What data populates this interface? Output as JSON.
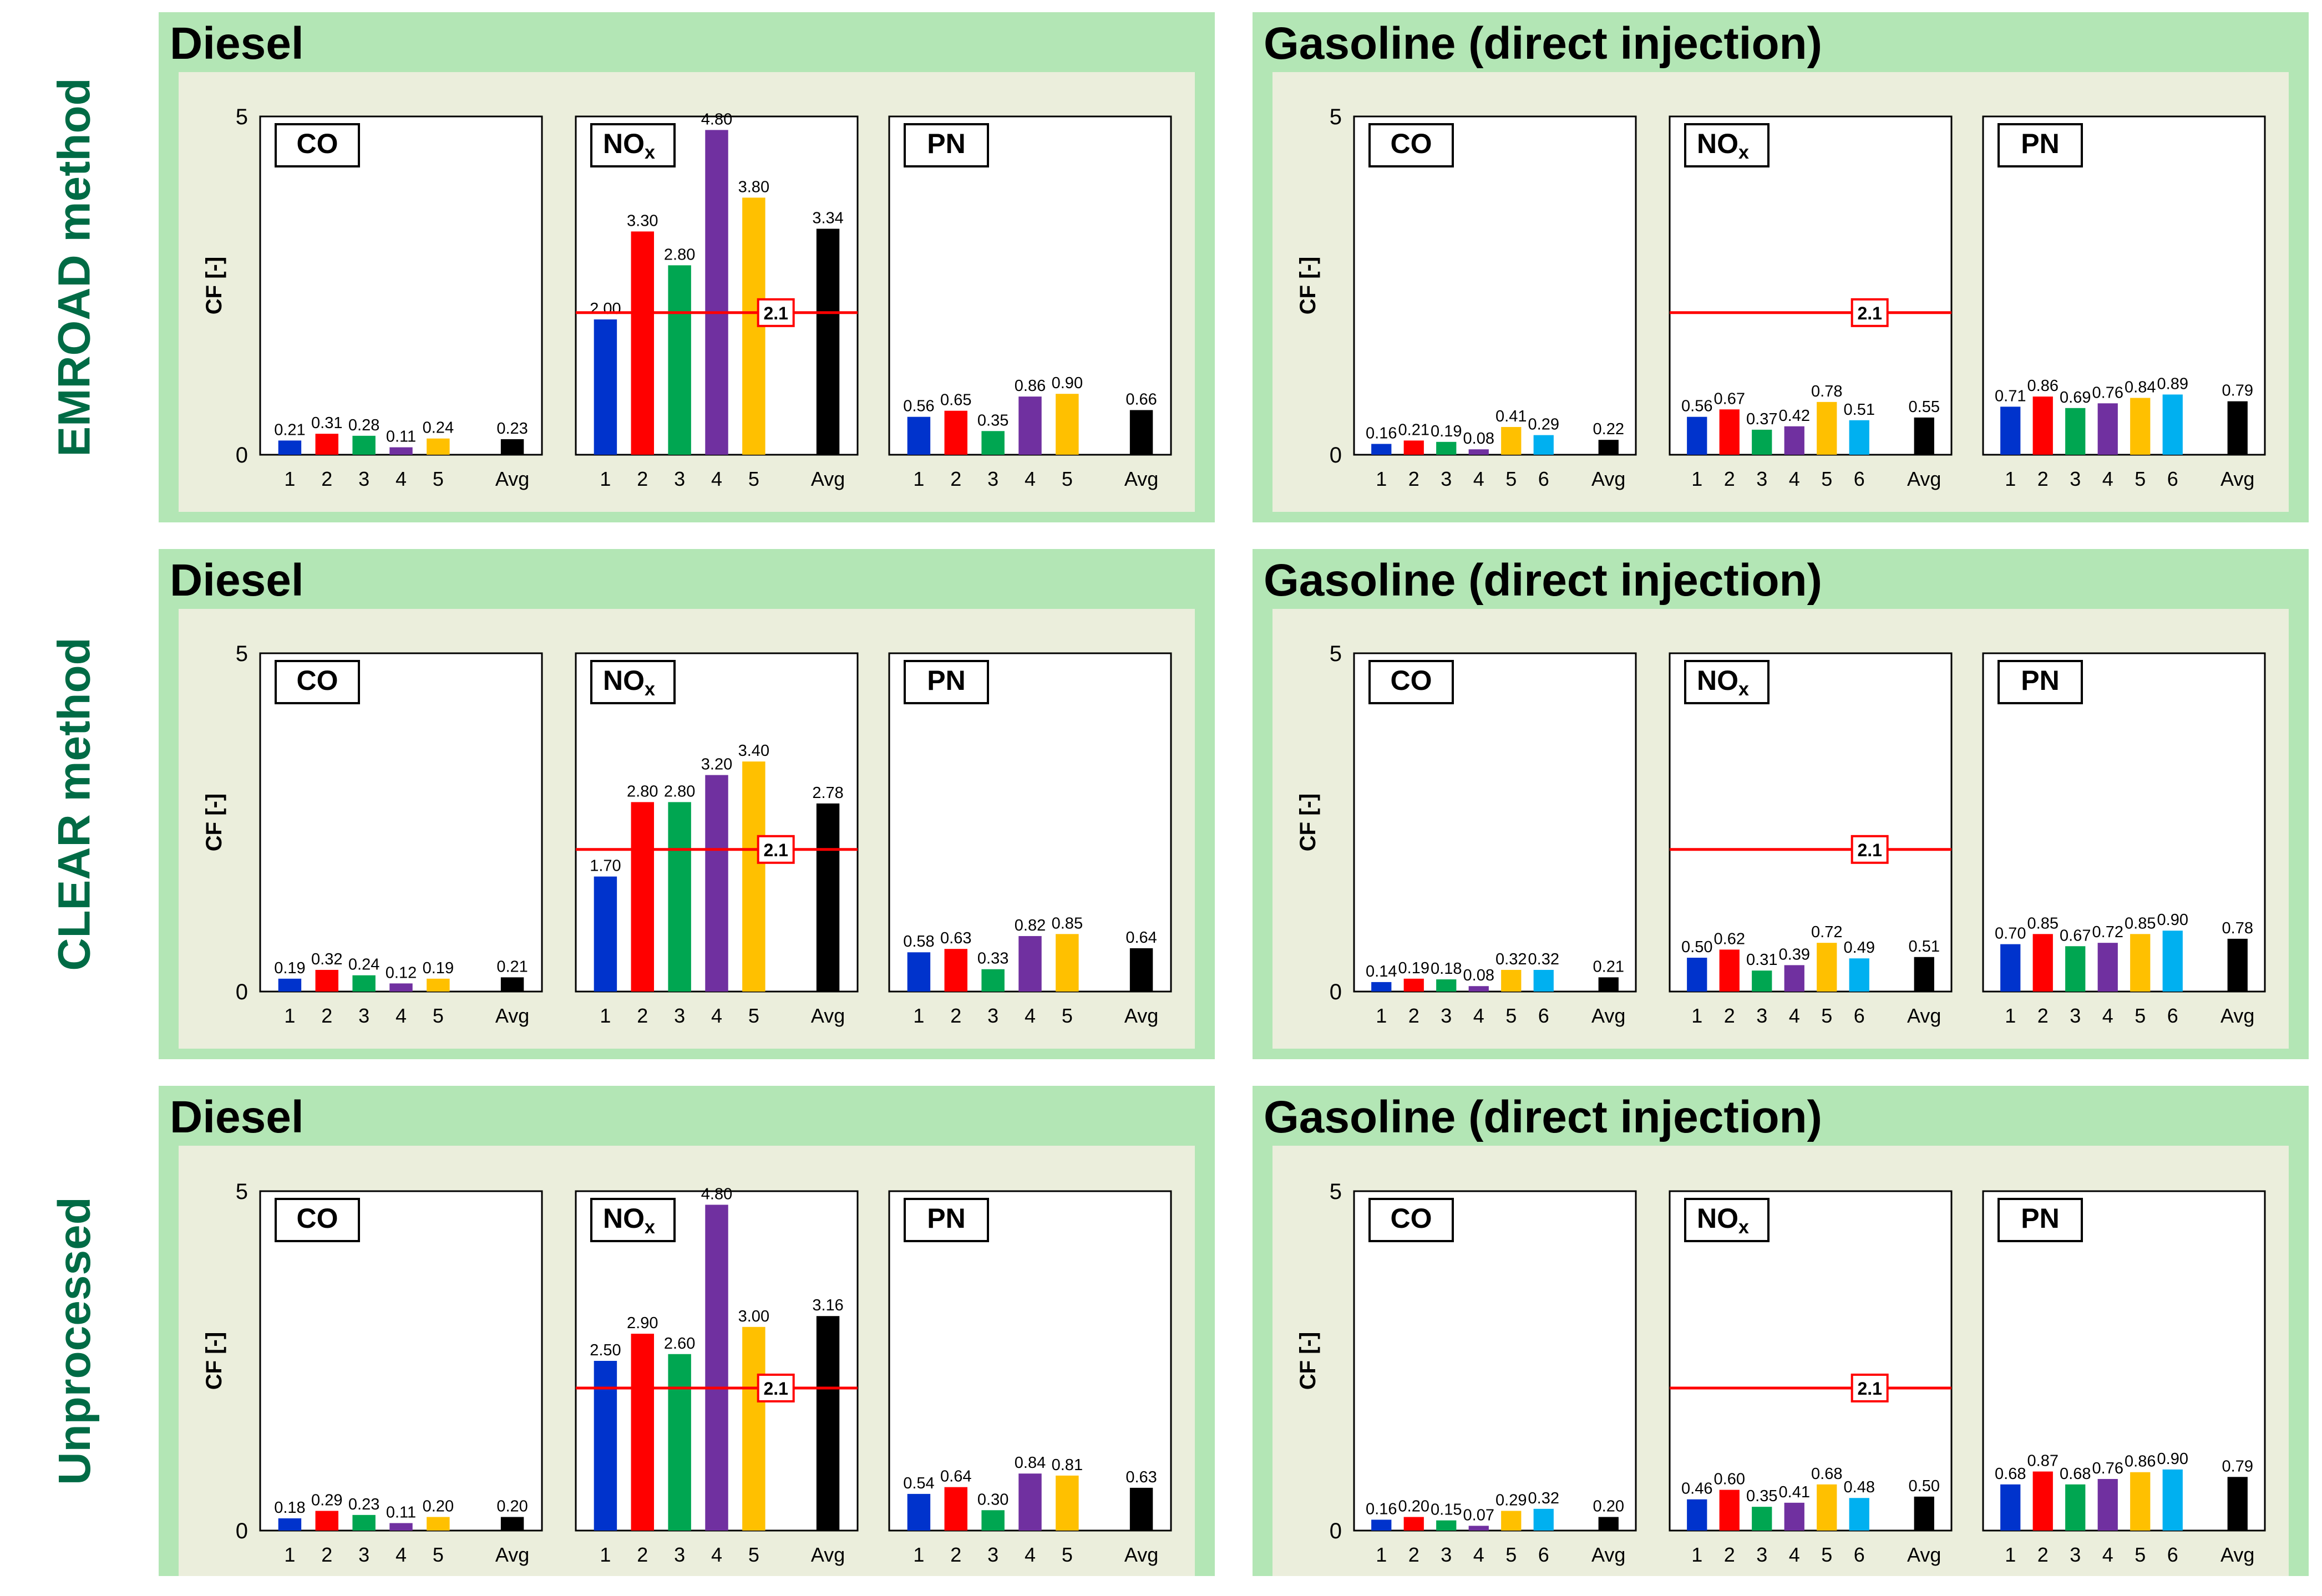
{
  "rows": [
    {
      "label": "EMROAD method"
    },
    {
      "label": "CLEAR method"
    },
    {
      "label": "Unprocessed"
    }
  ],
  "panel_titles": {
    "diesel": "Diesel",
    "gasoline": "Gasoline (direct injection)"
  },
  "y_axis": {
    "label": "CF [-]",
    "ticks": [
      "5",
      "0"
    ],
    "ylim": [
      0,
      5
    ]
  },
  "pollutants": [
    {
      "name": "CO",
      "sub": ""
    },
    {
      "name": "NO",
      "sub": "x"
    },
    {
      "name": "PN",
      "sub": ""
    }
  ],
  "nox_limit": {
    "value": 2.1,
    "label": "2.1"
  },
  "colors": {
    "panel_bg": "#b3e6b5",
    "inner_bg": "#ebeedc",
    "row_label": "#006b45",
    "limit_line": "#ff0000",
    "series": [
      "#0033cc",
      "#ff0000",
      "#00a651",
      "#7030a0",
      "#ffc000",
      "#00b0f0"
    ],
    "avg": "#000000"
  },
  "chart_data": [
    {
      "row": "EMROAD method",
      "panel": "Diesel",
      "type": "bar",
      "categories": [
        "1",
        "2",
        "3",
        "4",
        "5",
        "Avg"
      ],
      "charts": [
        {
          "pollutant": "CO",
          "values": [
            0.21,
            0.31,
            0.28,
            0.11,
            0.24,
            0.23
          ],
          "labels": [
            "0.21",
            "0.31",
            "0.28",
            "0.11",
            "0.24",
            "0.23"
          ]
        },
        {
          "pollutant": "NOx",
          "values": [
            2.0,
            3.3,
            2.8,
            4.8,
            3.8,
            3.34
          ],
          "labels": [
            "2.00",
            "3.30",
            "2.80",
            "4.80",
            "3.80",
            "3.34"
          ],
          "limit": 2.1
        },
        {
          "pollutant": "PN",
          "values": [
            0.56,
            0.65,
            0.35,
            0.86,
            0.9,
            0.66
          ],
          "labels": [
            "0.56",
            "0.65",
            "0.35",
            "0.86",
            "0.90",
            "0.66"
          ]
        }
      ]
    },
    {
      "row": "EMROAD method",
      "panel": "Gasoline (direct injection)",
      "type": "bar",
      "categories": [
        "1",
        "2",
        "3",
        "4",
        "5",
        "6",
        "Avg"
      ],
      "charts": [
        {
          "pollutant": "CO",
          "values": [
            0.16,
            0.21,
            0.19,
            0.08,
            0.41,
            0.29,
            0.22
          ],
          "labels": [
            "0.16",
            "0.21",
            "0.19",
            "0.08",
            "0.41",
            "0.29",
            "0.22"
          ]
        },
        {
          "pollutant": "NOx",
          "values": [
            0.56,
            0.67,
            0.37,
            0.42,
            0.78,
            0.51,
            0.55
          ],
          "labels": [
            "0.56",
            "0.67",
            "0.37",
            "0.42",
            "0.78",
            "0.51",
            "0.55"
          ],
          "limit": 2.1
        },
        {
          "pollutant": "PN",
          "values": [
            0.71,
            0.86,
            0.69,
            0.76,
            0.84,
            0.89,
            0.79
          ],
          "labels": [
            "0.71",
            "0.86",
            "0.69",
            "0.76",
            "0.84",
            "0.89",
            "0.79"
          ]
        }
      ]
    },
    {
      "row": "CLEAR method",
      "panel": "Diesel",
      "type": "bar",
      "categories": [
        "1",
        "2",
        "3",
        "4",
        "5",
        "Avg"
      ],
      "charts": [
        {
          "pollutant": "CO",
          "values": [
            0.19,
            0.32,
            0.24,
            0.12,
            0.19,
            0.21
          ],
          "labels": [
            "0.19",
            "0.32",
            "0.24",
            "0.12",
            "0.19",
            "0.21"
          ]
        },
        {
          "pollutant": "NOx",
          "values": [
            1.7,
            2.8,
            2.8,
            3.2,
            3.4,
            2.78
          ],
          "labels": [
            "1.70",
            "2.80",
            "2.80",
            "3.20",
            "3.40",
            "2.78"
          ],
          "limit": 2.1
        },
        {
          "pollutant": "PN",
          "values": [
            0.58,
            0.63,
            0.33,
            0.82,
            0.85,
            0.64
          ],
          "labels": [
            "0.58",
            "0.63",
            "0.33",
            "0.82",
            "0.85",
            "0.64"
          ]
        }
      ]
    },
    {
      "row": "CLEAR method",
      "panel": "Gasoline (direct injection)",
      "type": "bar",
      "categories": [
        "1",
        "2",
        "3",
        "4",
        "5",
        "6",
        "Avg"
      ],
      "charts": [
        {
          "pollutant": "CO",
          "values": [
            0.14,
            0.19,
            0.18,
            0.08,
            0.32,
            0.32,
            0.21
          ],
          "labels": [
            "0.14",
            "0.19",
            "0.18",
            "0.08",
            "0.32",
            "0.32",
            "0.21"
          ]
        },
        {
          "pollutant": "NOx",
          "values": [
            0.5,
            0.62,
            0.31,
            0.39,
            0.72,
            0.49,
            0.51
          ],
          "labels": [
            "0.50",
            "0.62",
            "0.31",
            "0.39",
            "0.72",
            "0.49",
            "0.51"
          ],
          "limit": 2.1
        },
        {
          "pollutant": "PN",
          "values": [
            0.7,
            0.85,
            0.67,
            0.72,
            0.85,
            0.9,
            0.78
          ],
          "labels": [
            "0.70",
            "0.85",
            "0.67",
            "0.72",
            "0.85",
            "0.90",
            "0.78"
          ]
        }
      ]
    },
    {
      "row": "Unprocessed",
      "panel": "Diesel",
      "type": "bar",
      "categories": [
        "1",
        "2",
        "3",
        "4",
        "5",
        "Avg"
      ],
      "charts": [
        {
          "pollutant": "CO",
          "values": [
            0.18,
            0.29,
            0.23,
            0.11,
            0.2,
            0.2
          ],
          "labels": [
            "0.18",
            "0.29",
            "0.23",
            "0.11",
            "0.20",
            "0.20"
          ]
        },
        {
          "pollutant": "NOx",
          "values": [
            2.5,
            2.9,
            2.6,
            4.8,
            3.0,
            3.16
          ],
          "labels": [
            "2.50",
            "2.90",
            "2.60",
            "4.80",
            "3.00",
            "3.16"
          ],
          "limit": 2.1
        },
        {
          "pollutant": "PN",
          "values": [
            0.54,
            0.64,
            0.3,
            0.84,
            0.81,
            0.63
          ],
          "labels": [
            "0.54",
            "0.64",
            "0.30",
            "0.84",
            "0.81",
            "0.63"
          ]
        }
      ]
    },
    {
      "row": "Unprocessed",
      "panel": "Gasoline (direct injection)",
      "type": "bar",
      "categories": [
        "1",
        "2",
        "3",
        "4",
        "5",
        "6",
        "Avg"
      ],
      "charts": [
        {
          "pollutant": "CO",
          "values": [
            0.16,
            0.2,
            0.15,
            0.07,
            0.29,
            0.32,
            0.2
          ],
          "labels": [
            "0.16",
            "0.20",
            "0.15",
            "0.07",
            "0.29",
            "0.32",
            "0.20"
          ]
        },
        {
          "pollutant": "NOx",
          "values": [
            0.46,
            0.6,
            0.35,
            0.41,
            0.68,
            0.48,
            0.5
          ],
          "labels": [
            "0.46",
            "0.60",
            "0.35",
            "0.41",
            "0.68",
            "0.48",
            "0.50"
          ],
          "limit": 2.1
        },
        {
          "pollutant": "PN",
          "values": [
            0.68,
            0.87,
            0.68,
            0.76,
            0.86,
            0.9,
            0.79
          ],
          "labels": [
            "0.68",
            "0.87",
            "0.68",
            "0.76",
            "0.86",
            "0.90",
            "0.79"
          ]
        }
      ]
    }
  ]
}
